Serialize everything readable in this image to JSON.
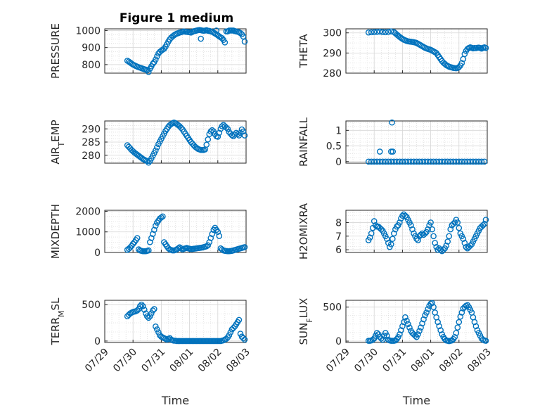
{
  "title": "Figure 1 medium",
  "colors": {
    "marker": "#0072bd",
    "axis": "#262626",
    "grid": "#d6d6d6"
  },
  "chart_data": [
    {
      "type": "scatter",
      "panel": "left-1",
      "title": "Figure 1 medium",
      "ylabel": "PRESSURE",
      "yticks": [
        "800",
        "900",
        "1000"
      ],
      "ylim": [
        750,
        1010
      ],
      "xlim": [
        "07/29",
        "08/03"
      ],
      "grid": true,
      "x": [
        0.8,
        0.85,
        0.9,
        0.95,
        1.0,
        1.05,
        1.1,
        1.15,
        1.2,
        1.25,
        1.3,
        1.35,
        1.4,
        1.45,
        1.5,
        1.55,
        1.6,
        1.65,
        1.7,
        1.75,
        1.8,
        1.85,
        1.9,
        1.95,
        2.0,
        2.05,
        2.1,
        2.15,
        2.2,
        2.25,
        2.3,
        2.35,
        2.4,
        2.45,
        2.5,
        2.55,
        2.6,
        2.65,
        2.7,
        2.75,
        2.8,
        2.85,
        2.9,
        2.95,
        3.0,
        3.05,
        3.1,
        3.15,
        3.2,
        3.25,
        3.3,
        3.35,
        3.4,
        3.45,
        3.5,
        3.55,
        3.6,
        3.65,
        3.7,
        3.75,
        3.8,
        3.85,
        3.9,
        3.95,
        4.0,
        4.05,
        4.1,
        4.15,
        4.2,
        4.25,
        4.3,
        4.35,
        4.4,
        4.45,
        4.5,
        4.55,
        4.6,
        4.65,
        4.7,
        4.75,
        4.8,
        4.85,
        4.9,
        4.95,
        3.4,
        3.95
      ],
      "y": [
        823,
        818,
        812,
        806,
        800,
        796,
        792,
        788,
        785,
        782,
        779,
        776,
        773,
        771,
        768,
        757,
        776,
        790,
        805,
        815,
        830,
        848,
        865,
        875,
        882,
        888,
        893,
        905,
        920,
        935,
        948,
        958,
        966,
        972,
        978,
        982,
        985,
        988,
        990,
        993,
        995,
        993,
        992,
        991,
        990,
        988,
        992,
        996,
        998,
        1000,
        1002,
        1003,
        1002,
        1000,
        999,
        1000,
        1002,
        999,
        998,
        995,
        993,
        988,
        983,
        978,
        972,
        966,
        960,
        955,
        945,
        930,
        995,
        995,
        1000,
        1000,
        1000,
        1000,
        997,
        995,
        993,
        990,
        985,
        978,
        965,
        935,
        952,
        1000
      ],
      "xticks": []
    },
    {
      "type": "scatter",
      "panel": "right-1",
      "ylabel": "THETA",
      "yticks": [
        "280",
        "290",
        "300"
      ],
      "ylim": [
        280,
        302
      ],
      "xlim": [
        "07/29",
        "08/03"
      ],
      "grid": true,
      "x": [
        0.8,
        0.9,
        1.0,
        1.1,
        1.2,
        1.3,
        1.4,
        1.5,
        1.6,
        1.7,
        1.75,
        1.8,
        1.85,
        1.9,
        1.95,
        2.0,
        2.05,
        2.1,
        2.15,
        2.2,
        2.25,
        2.3,
        2.35,
        2.4,
        2.45,
        2.5,
        2.55,
        2.6,
        2.65,
        2.7,
        2.75,
        2.8,
        2.85,
        2.9,
        2.95,
        3.0,
        3.05,
        3.1,
        3.15,
        3.2,
        3.25,
        3.3,
        3.35,
        3.4,
        3.45,
        3.5,
        3.55,
        3.6,
        3.65,
        3.7,
        3.75,
        3.8,
        3.85,
        3.9,
        3.95,
        4.0,
        4.05,
        4.1,
        4.15,
        4.2,
        4.25,
        4.3,
        4.35,
        4.4,
        4.45,
        4.5,
        4.55,
        4.6,
        4.65,
        4.7,
        4.75,
        4.8,
        4.85,
        4.9,
        4.95
      ],
      "y": [
        300.2,
        300.3,
        300.4,
        300.5,
        300.6,
        300.4,
        300.3,
        300.5,
        300.7,
        300.4,
        299.8,
        299.2,
        298.6,
        298.0,
        297.5,
        297.0,
        296.6,
        296.3,
        296.0,
        295.8,
        295.7,
        295.6,
        295.5,
        295.4,
        295.2,
        295.0,
        294.6,
        294.2,
        293.8,
        293.4,
        293.0,
        292.6,
        292.3,
        292.0,
        291.8,
        291.6,
        291.2,
        290.8,
        290.4,
        290.0,
        289.0,
        288.0,
        287.0,
        286.0,
        285.2,
        284.6,
        284.0,
        283.6,
        283.2,
        283.0,
        282.8,
        282.6,
        282.5,
        282.4,
        282.6,
        283.0,
        283.8,
        285.0,
        287.0,
        289.5,
        291.0,
        292.0,
        292.5,
        292.8,
        292.6,
        292.3,
        292.5,
        292.4,
        292.6,
        292.7,
        292.5,
        292.2,
        292.6,
        292.8,
        292.5
      ],
      "xticks": []
    },
    {
      "type": "scatter",
      "panel": "left-2",
      "ylabel": "AIR_TEMP",
      "yticks": [
        "280",
        "285",
        "290"
      ],
      "ylim": [
        277,
        293
      ],
      "xlim": [
        "07/29",
        "08/03"
      ],
      "grid": true,
      "x": [
        0.8,
        0.85,
        0.9,
        0.95,
        1.0,
        1.05,
        1.1,
        1.15,
        1.2,
        1.25,
        1.3,
        1.35,
        1.4,
        1.45,
        1.5,
        1.55,
        1.6,
        1.65,
        1.7,
        1.75,
        1.8,
        1.85,
        1.9,
        1.95,
        2.0,
        2.05,
        2.1,
        2.15,
        2.2,
        2.25,
        2.3,
        2.35,
        2.4,
        2.45,
        2.5,
        2.55,
        2.6,
        2.65,
        2.7,
        2.75,
        2.8,
        2.85,
        2.9,
        2.95,
        3.0,
        3.05,
        3.1,
        3.15,
        3.2,
        3.25,
        3.3,
        3.35,
        3.4,
        3.45,
        3.5,
        3.55,
        3.6,
        3.65,
        3.7,
        3.75,
        3.8,
        3.85,
        3.9,
        3.95,
        4.0,
        4.05,
        4.1,
        4.15,
        4.2,
        4.25,
        4.3,
        4.35,
        4.4,
        4.45,
        4.5,
        4.55,
        4.6,
        4.65,
        4.7,
        4.75,
        4.8,
        4.85,
        4.9,
        4.95
      ],
      "y": [
        283.8,
        283.2,
        282.6,
        282.0,
        281.5,
        281.0,
        280.6,
        280.2,
        279.8,
        279.4,
        279.0,
        278.6,
        278.3,
        278.0,
        277.8,
        277.2,
        277.8,
        278.8,
        279.8,
        280.8,
        281.8,
        283.0,
        284.2,
        285.2,
        286.2,
        287.2,
        288.2,
        289.2,
        290.0,
        290.8,
        291.4,
        291.8,
        292.2,
        292.4,
        292.2,
        291.8,
        291.4,
        291.0,
        290.4,
        289.8,
        289.0,
        288.2,
        287.4,
        286.6,
        285.8,
        285.0,
        284.4,
        283.8,
        283.2,
        282.8,
        282.4,
        282.2,
        282.0,
        282.0,
        282.0,
        282.2,
        284.0,
        286.0,
        288.0,
        289.0,
        289.5,
        289.0,
        288.0,
        287.2,
        287.0,
        288.5,
        290.0,
        291.0,
        291.5,
        291.0,
        290.5,
        290.0,
        288.8,
        288.2,
        287.6,
        287.2,
        287.8,
        288.5,
        288.0,
        287.5,
        288.5,
        289.8,
        289.0,
        287.5
      ],
      "xticks": []
    },
    {
      "type": "scatter",
      "panel": "right-2",
      "ylabel": "RAINFALL",
      "yticks": [
        "0",
        "0.5",
        "1"
      ],
      "ylim": [
        -0.05,
        1.3
      ],
      "xlim": [
        "07/29",
        "08/03"
      ],
      "grid": true,
      "x": [
        0.8,
        0.9,
        1.0,
        1.1,
        1.2,
        1.3,
        1.4,
        1.5,
        1.6,
        1.7,
        1.8,
        1.9,
        2.0,
        2.1,
        2.2,
        2.3,
        2.4,
        2.5,
        2.6,
        2.7,
        2.8,
        2.9,
        3.0,
        3.1,
        3.2,
        3.3,
        3.4,
        3.5,
        3.6,
        3.7,
        3.8,
        3.9,
        4.0,
        4.1,
        4.2,
        4.3,
        4.4,
        4.5,
        4.6,
        4.7,
        4.8,
        4.9,
        1.2,
        1.6,
        1.63,
        1.66
      ],
      "y": [
        0,
        0,
        0,
        0,
        0,
        0,
        0,
        0,
        0,
        0,
        0,
        0,
        0,
        0,
        0,
        0,
        0,
        0,
        0,
        0,
        0,
        0,
        0,
        0,
        0,
        0,
        0,
        0,
        0,
        0,
        0,
        0,
        0,
        0,
        0,
        0,
        0,
        0,
        0,
        0,
        0,
        0,
        0.32,
        0.32,
        1.25,
        0.32
      ],
      "xticks": []
    },
    {
      "type": "scatter",
      "panel": "left-3",
      "ylabel": "MIXDEPTH",
      "yticks": [
        "0",
        "1000",
        "2000"
      ],
      "ylim": [
        0,
        2050
      ],
      "xlim": [
        "07/29",
        "08/03"
      ],
      "grid": true,
      "x": [
        0.8,
        0.85,
        0.9,
        0.95,
        1.0,
        1.05,
        1.1,
        1.15,
        1.2,
        1.25,
        1.3,
        1.35,
        1.4,
        1.45,
        1.5,
        1.55,
        1.6,
        1.65,
        1.7,
        1.75,
        1.8,
        1.85,
        1.9,
        1.95,
        2.0,
        2.05,
        2.1,
        2.15,
        2.2,
        2.25,
        2.3,
        2.35,
        2.4,
        2.45,
        2.5,
        2.55,
        2.6,
        2.65,
        2.7,
        2.75,
        2.8,
        2.85,
        2.9,
        2.95,
        3.0,
        3.05,
        3.1,
        3.15,
        3.2,
        3.25,
        3.3,
        3.35,
        3.4,
        3.45,
        3.5,
        3.55,
        3.6,
        3.65,
        3.7,
        3.75,
        3.8,
        3.85,
        3.9,
        3.95,
        4.0,
        4.05,
        4.1,
        4.15,
        4.2,
        4.25,
        4.3,
        4.35,
        4.4,
        4.45,
        4.5,
        4.55,
        4.6,
        4.65,
        4.7,
        4.75,
        4.8,
        4.85,
        4.9,
        4.95
      ],
      "y": [
        130,
        180,
        240,
        320,
        420,
        500,
        600,
        700,
        150,
        100,
        80,
        60,
        60,
        60,
        80,
        100,
        500,
        700,
        900,
        1100,
        1300,
        1450,
        1550,
        1650,
        1700,
        1750,
        500,
        400,
        300,
        200,
        150,
        120,
        100,
        100,
        120,
        150,
        200,
        250,
        200,
        150,
        180,
        200,
        220,
        200,
        180,
        170,
        170,
        180,
        190,
        200,
        210,
        220,
        230,
        240,
        260,
        280,
        300,
        350,
        500,
        700,
        900,
        1100,
        1200,
        1100,
        1000,
        800,
        200,
        150,
        100,
        80,
        70,
        60,
        60,
        70,
        80,
        100,
        120,
        140,
        160,
        180,
        200,
        220,
        240,
        260
      ],
      "xticks": []
    },
    {
      "type": "scatter",
      "panel": "right-3",
      "ylabel": "H2OMIXRA",
      "yticks": [
        "6",
        "7",
        "8"
      ],
      "ylim": [
        5.8,
        8.9
      ],
      "xlim": [
        "07/29",
        "08/03"
      ],
      "grid": true,
      "x": [
        0.8,
        0.85,
        0.9,
        0.95,
        1.0,
        1.05,
        1.1,
        1.15,
        1.2,
        1.25,
        1.3,
        1.35,
        1.4,
        1.45,
        1.5,
        1.55,
        1.6,
        1.65,
        1.7,
        1.75,
        1.8,
        1.85,
        1.9,
        1.95,
        2.0,
        2.05,
        2.1,
        2.15,
        2.2,
        2.25,
        2.3,
        2.35,
        2.4,
        2.45,
        2.5,
        2.55,
        2.6,
        2.65,
        2.7,
        2.75,
        2.8,
        2.85,
        2.9,
        2.95,
        3.0,
        3.05,
        3.1,
        3.15,
        3.2,
        3.25,
        3.3,
        3.35,
        3.4,
        3.45,
        3.5,
        3.55,
        3.6,
        3.65,
        3.7,
        3.75,
        3.8,
        3.85,
        3.9,
        3.95,
        4.0,
        4.05,
        4.1,
        4.15,
        4.2,
        4.25,
        4.3,
        4.35,
        4.4,
        4.45,
        4.5,
        4.55,
        4.6,
        4.65,
        4.7,
        4.75,
        4.8,
        4.85,
        4.9,
        4.95
      ],
      "y": [
        6.7,
        6.9,
        7.2,
        7.6,
        8.1,
        7.8,
        7.7,
        7.7,
        7.6,
        7.5,
        7.4,
        7.2,
        7.0,
        6.8,
        6.5,
        6.2,
        6.4,
        6.8,
        7.2,
        7.5,
        7.7,
        7.8,
        8.0,
        8.3,
        8.5,
        8.6,
        8.5,
        8.4,
        8.2,
        8.0,
        7.8,
        7.5,
        7.2,
        7.0,
        6.8,
        6.7,
        7.0,
        7.1,
        7.2,
        7.1,
        7.2,
        7.3,
        7.5,
        7.8,
        8.0,
        7.5,
        7.0,
        6.5,
        6.2,
        6.0,
        6.1,
        6.0,
        5.9,
        6.0,
        6.1,
        6.3,
        6.6,
        7.0,
        7.5,
        7.8,
        7.9,
        8.0,
        8.2,
        8.0,
        7.6,
        7.2,
        7.0,
        6.8,
        6.5,
        6.2,
        6.1,
        6.2,
        6.3,
        6.4,
        6.6,
        6.8,
        7.0,
        7.2,
        7.4,
        7.6,
        7.7,
        7.8,
        7.9,
        8.2
      ],
      "xticks": []
    },
    {
      "type": "scatter",
      "panel": "left-4",
      "ylabel": "TERR_MSL",
      "xlabel": "Time",
      "yticks": [
        "0",
        "500"
      ],
      "ylim": [
        -20,
        560
      ],
      "xlim": [
        "07/29",
        "08/03"
      ],
      "grid": true,
      "x": [
        0.8,
        0.85,
        0.9,
        0.95,
        1.0,
        1.05,
        1.1,
        1.15,
        1.2,
        1.25,
        1.3,
        1.35,
        1.4,
        1.45,
        1.5,
        1.55,
        1.6,
        1.65,
        1.7,
        1.75,
        1.8,
        1.85,
        1.9,
        1.95,
        2.0,
        2.05,
        2.1,
        2.15,
        2.2,
        2.25,
        2.3,
        2.35,
        2.4,
        2.45,
        2.5,
        2.55,
        2.6,
        2.65,
        2.7,
        2.75,
        2.8,
        2.85,
        2.9,
        2.95,
        3.0,
        3.05,
        3.1,
        3.15,
        3.2,
        3.25,
        3.3,
        3.35,
        3.4,
        3.45,
        3.5,
        3.55,
        3.6,
        3.65,
        3.7,
        3.75,
        3.8,
        3.85,
        3.9,
        3.95,
        4.0,
        4.05,
        4.1,
        4.15,
        4.2,
        4.25,
        4.3,
        4.35,
        4.4,
        4.45,
        4.5,
        4.55,
        4.6,
        4.65,
        4.7,
        4.75,
        4.8,
        4.85,
        4.9,
        4.95
      ],
      "y": [
        340,
        360,
        380,
        390,
        400,
        405,
        410,
        420,
        440,
        480,
        500,
        480,
        430,
        380,
        340,
        320,
        340,
        380,
        420,
        440,
        200,
        160,
        120,
        80,
        60,
        50,
        40,
        30,
        20,
        30,
        40,
        20,
        10,
        5,
        5,
        0,
        0,
        0,
        0,
        0,
        0,
        0,
        0,
        0,
        0,
        0,
        0,
        0,
        0,
        0,
        0,
        0,
        0,
        0,
        0,
        0,
        0,
        0,
        0,
        0,
        0,
        0,
        0,
        0,
        0,
        0,
        0,
        5,
        10,
        20,
        30,
        50,
        80,
        120,
        160,
        180,
        200,
        230,
        260,
        290,
        100,
        60,
        40,
        20
      ],
      "xticks": [
        "07/29",
        "07/30",
        "07/31",
        "08/01",
        "08/02",
        "08/03"
      ]
    },
    {
      "type": "scatter",
      "panel": "right-4",
      "ylabel": "SUN_FLUX",
      "xlabel": "Time",
      "yticks": [
        "0",
        "500"
      ],
      "ylim": [
        -20,
        600
      ],
      "xlim": [
        "07/29",
        "08/03"
      ],
      "grid": true,
      "x": [
        0.8,
        0.85,
        0.9,
        0.95,
        1.0,
        1.05,
        1.1,
        1.15,
        1.2,
        1.25,
        1.3,
        1.35,
        1.4,
        1.45,
        1.5,
        1.55,
        1.6,
        1.65,
        1.7,
        1.75,
        1.8,
        1.85,
        1.9,
        1.95,
        2.0,
        2.05,
        2.1,
        2.15,
        2.2,
        2.25,
        2.3,
        2.35,
        2.4,
        2.45,
        2.5,
        2.55,
        2.6,
        2.65,
        2.7,
        2.75,
        2.8,
        2.85,
        2.9,
        2.95,
        3.0,
        3.05,
        3.1,
        3.15,
        3.2,
        3.25,
        3.3,
        3.35,
        3.4,
        3.45,
        3.5,
        3.55,
        3.6,
        3.65,
        3.7,
        3.75,
        3.8,
        3.85,
        3.9,
        3.95,
        4.0,
        4.05,
        4.1,
        4.15,
        4.2,
        4.25,
        4.3,
        4.35,
        4.4,
        4.45,
        4.5,
        4.55,
        4.6,
        4.65,
        4.7,
        4.75,
        4.8,
        4.85,
        4.9,
        4.95
      ],
      "y": [
        5,
        5,
        10,
        20,
        40,
        80,
        120,
        100,
        60,
        40,
        20,
        80,
        120,
        80,
        20,
        10,
        5,
        5,
        5,
        10,
        30,
        60,
        100,
        160,
        220,
        280,
        350,
        300,
        250,
        200,
        150,
        120,
        100,
        80,
        60,
        100,
        150,
        200,
        260,
        320,
        380,
        420,
        470,
        520,
        550,
        560,
        500,
        420,
        350,
        280,
        220,
        160,
        100,
        60,
        30,
        10,
        5,
        0,
        5,
        10,
        30,
        60,
        120,
        200,
        280,
        360,
        420,
        480,
        500,
        520,
        530,
        500,
        460,
        420,
        350,
        280,
        220,
        160,
        120,
        80,
        40,
        20,
        10,
        5
      ],
      "xticks": [
        "07/29",
        "07/30",
        "07/31",
        "08/01",
        "08/02",
        "08/03"
      ]
    }
  ]
}
